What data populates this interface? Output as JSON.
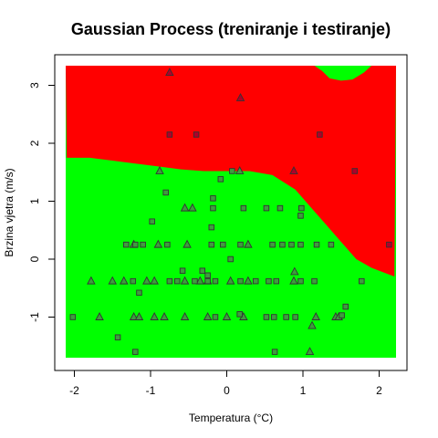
{
  "chart_data": {
    "type": "scatter",
    "title": "Gaussian Process (treniranje i testiranje)",
    "xlabel": "Temperatura (°C)",
    "ylabel": "Brzina vjetra (m/s)",
    "xlim": [
      -2.1,
      2.2
    ],
    "ylim": [
      -1.72,
      3.35
    ],
    "x_ticks": [
      -2,
      -1,
      0,
      1,
      2
    ],
    "y_ticks": [
      -1,
      0,
      1,
      2,
      3
    ],
    "grid": false,
    "legend": "none",
    "background_regions": {
      "description": "decision regions",
      "colors": {
        "class_a": "#00ff00",
        "class_b": "#ff0000"
      },
      "boundary": [
        [
          -2.1,
          1.75
        ],
        [
          -1.8,
          1.75
        ],
        [
          -1.5,
          1.7
        ],
        [
          -1.2,
          1.65
        ],
        [
          -0.9,
          1.6
        ],
        [
          -0.6,
          1.55
        ],
        [
          -0.3,
          1.52
        ],
        [
          0.0,
          1.52
        ],
        [
          0.3,
          1.52
        ],
        [
          0.6,
          1.45
        ],
        [
          0.9,
          1.2
        ],
        [
          1.1,
          0.9
        ],
        [
          1.3,
          0.6
        ],
        [
          1.5,
          0.3
        ],
        [
          1.7,
          0.0
        ],
        [
          1.9,
          -0.15
        ],
        [
          2.1,
          -0.25
        ],
        [
          2.2,
          -0.3
        ]
      ],
      "green_patch_top": [
        [
          1.15,
          3.35
        ],
        [
          1.25,
          3.25
        ],
        [
          1.35,
          3.12
        ],
        [
          1.5,
          3.08
        ],
        [
          1.65,
          3.1
        ],
        [
          1.8,
          3.22
        ],
        [
          1.9,
          3.35
        ]
      ]
    },
    "series": [
      {
        "marker": "triangle",
        "points": [
          [
            -0.75,
            3.22
          ],
          [
            0.18,
            2.78
          ],
          [
            -0.88,
            1.52
          ],
          [
            0.17,
            1.52
          ],
          [
            0.88,
            1.52
          ],
          [
            -0.55,
            0.88
          ],
          [
            -0.45,
            0.88
          ],
          [
            -1.22,
            0.25
          ],
          [
            -0.9,
            0.25
          ],
          [
            -0.52,
            0.25
          ],
          [
            0.28,
            0.25
          ],
          [
            -1.78,
            -0.38
          ],
          [
            -1.5,
            -0.38
          ],
          [
            -1.35,
            -0.38
          ],
          [
            -1.05,
            -0.38
          ],
          [
            -0.95,
            -0.38
          ],
          [
            -0.55,
            -0.38
          ],
          [
            -0.35,
            -0.38
          ],
          [
            -0.25,
            -0.38
          ],
          [
            0.05,
            -0.38
          ],
          [
            0.28,
            -0.38
          ],
          [
            0.88,
            -0.38
          ],
          [
            0.89,
            -0.22
          ],
          [
            -1.67,
            -1.0
          ],
          [
            -1.22,
            -1.0
          ],
          [
            -1.15,
            -1.0
          ],
          [
            -0.95,
            -1.0
          ],
          [
            -0.82,
            -1.0
          ],
          [
            -0.55,
            -1.0
          ],
          [
            -0.25,
            -1.0
          ],
          [
            0.0,
            -1.0
          ],
          [
            0.22,
            -1.0
          ],
          [
            1.17,
            -1.0
          ],
          [
            1.43,
            -1.0
          ],
          [
            1.47,
            -1.0
          ],
          [
            1.12,
            -1.15
          ],
          [
            1.09,
            -1.6
          ]
        ]
      },
      {
        "marker": "square",
        "points": [
          [
            -0.75,
            2.15
          ],
          [
            -0.4,
            2.15
          ],
          [
            1.22,
            2.15
          ],
          [
            0.07,
            1.52
          ],
          [
            1.68,
            1.52
          ],
          [
            -0.08,
            1.38
          ],
          [
            -0.8,
            1.15
          ],
          [
            -0.18,
            1.05
          ],
          [
            -0.98,
            0.65
          ],
          [
            -0.18,
            0.88
          ],
          [
            0.22,
            0.88
          ],
          [
            0.52,
            0.88
          ],
          [
            0.7,
            0.88
          ],
          [
            0.98,
            0.88
          ],
          [
            -0.2,
            0.55
          ],
          [
            0.97,
            0.75
          ],
          [
            -1.32,
            0.25
          ],
          [
            -1.2,
            0.25
          ],
          [
            -1.1,
            0.25
          ],
          [
            -0.78,
            0.25
          ],
          [
            -0.2,
            0.25
          ],
          [
            -0.05,
            0.25
          ],
          [
            0.18,
            0.25
          ],
          [
            0.6,
            0.25
          ],
          [
            0.73,
            0.25
          ],
          [
            0.85,
            0.25
          ],
          [
            0.97,
            0.25
          ],
          [
            1.18,
            0.25
          ],
          [
            1.37,
            0.25
          ],
          [
            2.13,
            0.25
          ],
          [
            0.05,
            0.0
          ],
          [
            -0.58,
            -0.2
          ],
          [
            -0.32,
            -0.2
          ],
          [
            -0.75,
            -0.38
          ],
          [
            -0.65,
            -0.38
          ],
          [
            -0.42,
            -0.38
          ],
          [
            -0.25,
            -0.38
          ],
          [
            -0.15,
            -0.38
          ],
          [
            0.18,
            -0.38
          ],
          [
            0.38,
            -0.38
          ],
          [
            0.55,
            -0.38
          ],
          [
            0.65,
            -0.38
          ],
          [
            0.97,
            -0.38
          ],
          [
            1.15,
            -0.38
          ],
          [
            1.77,
            -0.38
          ],
          [
            -1.23,
            -0.38
          ],
          [
            -1.15,
            -0.58
          ],
          [
            -0.25,
            -0.28
          ],
          [
            1.56,
            -0.82
          ],
          [
            -2.02,
            -1.0
          ],
          [
            -0.15,
            -1.0
          ],
          [
            0.52,
            -1.0
          ],
          [
            0.62,
            -1.0
          ],
          [
            0.78,
            -1.0
          ],
          [
            0.9,
            -1.0
          ],
          [
            1.51,
            -0.97
          ],
          [
            0.17,
            -0.95
          ],
          [
            -1.43,
            -1.35
          ],
          [
            -1.2,
            -1.6
          ],
          [
            0.63,
            -1.6
          ]
        ]
      }
    ]
  }
}
